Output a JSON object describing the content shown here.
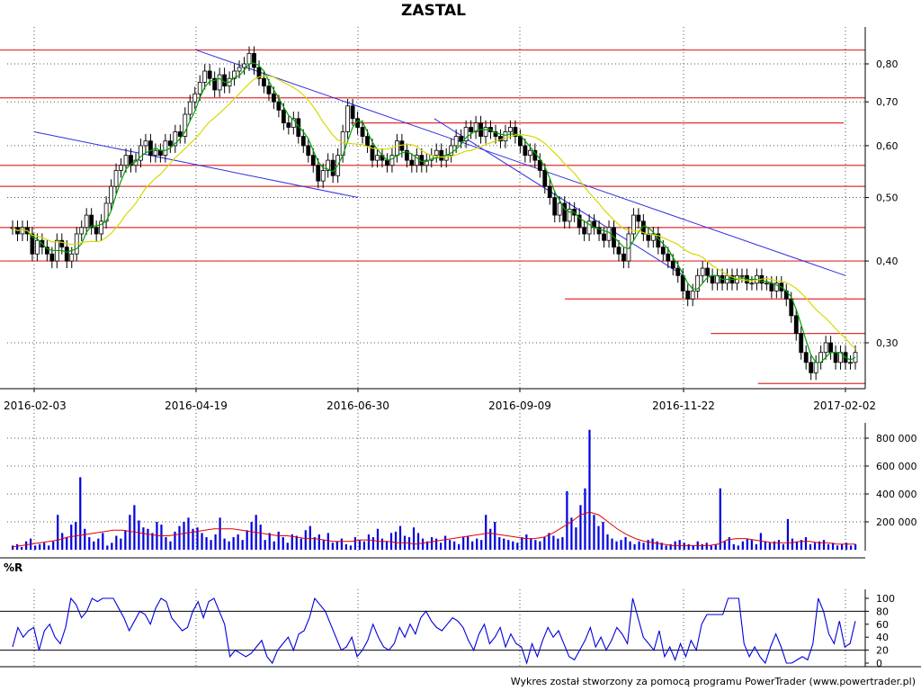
{
  "title": "ZASTAL",
  "footer": "Wykres został stworzony za pomocą programu PowerTrader (www.powertrader.pl)",
  "colors": {
    "support_lines": "#e03030",
    "trend_lines": "#3030e0",
    "ma_short": "#00a000",
    "ma_long": "#d8d800",
    "volume_bars": "#0000dd",
    "volume_ma": "#e00000",
    "wr_line": "#0000dd",
    "candles": "#000000"
  },
  "chart_data": [
    {
      "type": "candlestick",
      "title": "ZASTAL",
      "x_ticks": [
        "2016-02-03",
        "2016-04-19",
        "2016-06-30",
        "2016-09-09",
        "2016-11-22",
        "2017-02-02"
      ],
      "y_ticks": [
        "0,30",
        "0,40",
        "0,50",
        "0,60",
        "0,70",
        "0,80"
      ],
      "y_scale": "log",
      "grid": true,
      "close_series": [
        0.45,
        0.44,
        0.45,
        0.44,
        0.41,
        0.43,
        0.42,
        0.41,
        0.4,
        0.43,
        0.42,
        0.4,
        0.41,
        0.44,
        0.45,
        0.47,
        0.45,
        0.44,
        0.46,
        0.49,
        0.52,
        0.55,
        0.56,
        0.58,
        0.56,
        0.57,
        0.6,
        0.61,
        0.58,
        0.59,
        0.58,
        0.61,
        0.6,
        0.63,
        0.62,
        0.67,
        0.7,
        0.72,
        0.75,
        0.78,
        0.76,
        0.73,
        0.77,
        0.74,
        0.76,
        0.78,
        0.79,
        0.8,
        0.83,
        0.79,
        0.76,
        0.74,
        0.72,
        0.7,
        0.68,
        0.65,
        0.64,
        0.66,
        0.62,
        0.6,
        0.58,
        0.56,
        0.53,
        0.55,
        0.57,
        0.54,
        0.58,
        0.63,
        0.69,
        0.66,
        0.64,
        0.62,
        0.6,
        0.57,
        0.58,
        0.57,
        0.56,
        0.58,
        0.61,
        0.59,
        0.57,
        0.56,
        0.58,
        0.56,
        0.57,
        0.58,
        0.59,
        0.57,
        0.58,
        0.6,
        0.62,
        0.61,
        0.64,
        0.63,
        0.65,
        0.62,
        0.64,
        0.63,
        0.62,
        0.61,
        0.63,
        0.64,
        0.62,
        0.6,
        0.58,
        0.59,
        0.57,
        0.55,
        0.52,
        0.5,
        0.47,
        0.49,
        0.46,
        0.48,
        0.47,
        0.45,
        0.44,
        0.46,
        0.45,
        0.44,
        0.43,
        0.45,
        0.42,
        0.41,
        0.4,
        0.44,
        0.47,
        0.46,
        0.44,
        0.43,
        0.44,
        0.42,
        0.41,
        0.4,
        0.39,
        0.38,
        0.36,
        0.35,
        0.36,
        0.38,
        0.39,
        0.38,
        0.37,
        0.38,
        0.37,
        0.38,
        0.37,
        0.38,
        0.38,
        0.37,
        0.37,
        0.38,
        0.37,
        0.37,
        0.36,
        0.37,
        0.36,
        0.35,
        0.33,
        0.31,
        0.29,
        0.28,
        0.27,
        0.28,
        0.29,
        0.3,
        0.29,
        0.28,
        0.29,
        0.28,
        0.28,
        0.29
      ],
      "horizontal_levels": [
        0.84,
        0.71,
        0.65,
        0.56,
        0.52,
        0.45,
        0.4,
        0.35,
        0.31,
        0.26
      ],
      "trend_lines": [
        {
          "from": [
            "2016-02-03",
            0.63
          ],
          "to": [
            "2016-06-30",
            0.5
          ]
        },
        {
          "from": [
            "2016-04-19",
            0.84
          ],
          "to": [
            "2017-02-02",
            0.38
          ]
        },
        {
          "from": [
            "2016-08-01",
            0.66
          ],
          "to": [
            "2016-11-22",
            0.38
          ]
        }
      ]
    },
    {
      "type": "bar",
      "y_ticks": [
        "200 000",
        "400 000",
        "600 000",
        "800 000"
      ],
      "ylim": [
        0,
        900000
      ],
      "values": [
        30000,
        40000,
        20000,
        60000,
        80000,
        30000,
        40000,
        50000,
        30000,
        60000,
        250000,
        120000,
        90000,
        180000,
        200000,
        520000,
        150000,
        90000,
        60000,
        80000,
        120000,
        30000,
        50000,
        100000,
        80000,
        140000,
        250000,
        320000,
        210000,
        160000,
        150000,
        120000,
        200000,
        180000,
        90000,
        60000,
        130000,
        170000,
        200000,
        230000,
        150000,
        160000,
        120000,
        90000,
        70000,
        110000,
        230000,
        80000,
        60000,
        90000,
        110000,
        70000,
        140000,
        200000,
        250000,
        180000,
        70000,
        120000,
        60000,
        130000,
        90000,
        50000,
        110000,
        100000,
        80000,
        140000,
        170000,
        90000,
        110000,
        70000,
        120000,
        50000,
        60000,
        80000,
        40000,
        30000,
        90000,
        70000,
        60000,
        110000,
        90000,
        150000,
        80000,
        60000,
        120000,
        130000,
        170000,
        100000,
        90000,
        160000,
        120000,
        80000,
        60000,
        90000,
        80000,
        50000,
        100000,
        70000,
        60000,
        40000,
        90000,
        100000,
        60000,
        80000,
        70000,
        250000,
        150000,
        200000,
        90000,
        80000,
        70000,
        60000,
        50000,
        90000,
        110000,
        80000,
        70000,
        60000,
        90000,
        120000,
        100000,
        80000,
        90000,
        420000,
        230000,
        160000,
        320000,
        440000,
        860000,
        250000,
        170000,
        200000,
        110000,
        80000,
        60000,
        70000,
        90000,
        60000,
        40000,
        60000,
        50000,
        70000,
        80000,
        60000,
        50000,
        30000,
        40000,
        60000,
        70000,
        50000,
        40000,
        30000,
        60000,
        40000,
        50000,
        30000,
        40000,
        440000,
        60000,
        90000,
        40000,
        30000,
        60000,
        80000,
        70000,
        40000,
        120000,
        60000,
        50000,
        60000,
        70000,
        40000,
        220000,
        80000,
        60000,
        70000,
        90000,
        40000,
        50000,
        60000,
        70000,
        40000,
        50000,
        30000,
        40000,
        50000,
        30000,
        40000
      ],
      "ma_values": [
        20000,
        30000,
        40000,
        50000,
        60000,
        70000,
        90000,
        100000,
        110000,
        120000,
        130000,
        140000,
        140000,
        130000,
        120000,
        110000,
        100000,
        100000,
        110000,
        120000,
        130000,
        140000,
        150000,
        150000,
        150000,
        140000,
        130000,
        120000,
        110000,
        100000,
        100000,
        90000,
        80000,
        80000,
        70000,
        60000,
        60000,
        60000,
        70000,
        70000,
        60000,
        60000,
        50000,
        50000,
        40000,
        50000,
        60000,
        70000,
        80000,
        90000,
        100000,
        110000,
        120000,
        110000,
        100000,
        90000,
        80000,
        80000,
        90000,
        120000,
        160000,
        200000,
        250000,
        270000,
        250000,
        200000,
        150000,
        110000,
        80000,
        60000,
        50000,
        40000,
        30000,
        30000,
        30000,
        30000,
        30000,
        40000,
        70000,
        80000,
        80000,
        70000,
        60000,
        50000,
        50000,
        50000,
        60000,
        60000,
        50000,
        50000,
        40000,
        40000,
        40000
      ]
    },
    {
      "type": "line",
      "title": "%R",
      "y_ticks": [
        "0",
        "20",
        "40",
        "60",
        "80",
        "100"
      ],
      "ylim": [
        0,
        100
      ],
      "reference_lines": [
        20,
        80
      ],
      "values": [
        25,
        55,
        40,
        50,
        55,
        20,
        50,
        60,
        40,
        30,
        55,
        100,
        90,
        70,
        80,
        100,
        95,
        100,
        100,
        100,
        85,
        70,
        50,
        65,
        80,
        75,
        60,
        85,
        100,
        95,
        70,
        60,
        50,
        55,
        80,
        95,
        70,
        95,
        100,
        80,
        60,
        10,
        20,
        15,
        10,
        15,
        25,
        35,
        10,
        0,
        20,
        30,
        40,
        20,
        45,
        50,
        70,
        100,
        90,
        80,
        60,
        40,
        20,
        25,
        40,
        10,
        20,
        35,
        60,
        40,
        25,
        20,
        30,
        55,
        40,
        60,
        45,
        70,
        80,
        65,
        55,
        50,
        60,
        70,
        65,
        55,
        35,
        20,
        45,
        60,
        30,
        40,
        55,
        25,
        45,
        30,
        25,
        0,
        30,
        10,
        35,
        55,
        40,
        50,
        30,
        10,
        5,
        20,
        35,
        55,
        25,
        40,
        20,
        35,
        55,
        45,
        30,
        100,
        70,
        40,
        30,
        20,
        50,
        10,
        25,
        5,
        30,
        10,
        35,
        20,
        60,
        75,
        75,
        75,
        75,
        100,
        100,
        100,
        30,
        10,
        25,
        10,
        0,
        25,
        45,
        25,
        0,
        0,
        5,
        10,
        5,
        30,
        100,
        80,
        45,
        30,
        65,
        25,
        30,
        65
      ]
    }
  ]
}
